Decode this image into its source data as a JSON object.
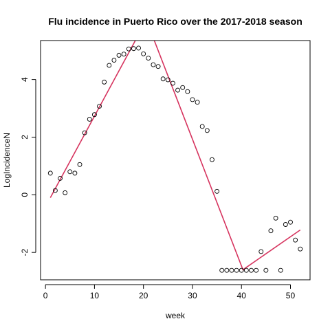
{
  "chart_data": {
    "type": "scatter",
    "title": "Flu incidence in Puerto Rico over the 2017-2018 season",
    "xlabel": "week",
    "ylabel": "LogIncidenceN",
    "xlim": [
      -1,
      54
    ],
    "ylim": [
      -2.95,
      5.35
    ],
    "x_ticks": [
      0,
      10,
      20,
      30,
      40,
      50
    ],
    "y_ticks": [
      -2,
      0,
      2,
      4
    ],
    "grid": false,
    "legend": "none",
    "point_color": "#000000",
    "line_color": "#d6335e",
    "series": [
      {
        "type": "scatter",
        "x": [
          1,
          2,
          3,
          4,
          5,
          6,
          7,
          8,
          9,
          10,
          11,
          12,
          13,
          14,
          15,
          16,
          17,
          18,
          19,
          20,
          21,
          22,
          23,
          24,
          25,
          26,
          27,
          28,
          29,
          30,
          31,
          32,
          33,
          34,
          35,
          36,
          37,
          38,
          39,
          40,
          41,
          42,
          43,
          44,
          45,
          46,
          47,
          48,
          49,
          50,
          51,
          52
        ],
        "y": [
          0.75,
          0.15,
          0.57,
          0.07,
          0.8,
          0.75,
          1.05,
          2.15,
          2.62,
          2.78,
          3.07,
          3.91,
          4.49,
          4.67,
          4.84,
          4.88,
          5.06,
          5.07,
          5.09,
          4.89,
          4.74,
          4.51,
          4.45,
          4.02,
          3.99,
          3.87,
          3.63,
          3.72,
          3.58,
          3.3,
          3.21,
          2.37,
          2.23,
          1.22,
          0.12,
          -2.62,
          -2.62,
          -2.62,
          -2.62,
          -2.62,
          -2.62,
          -2.62,
          -2.62,
          -1.97,
          -2.62,
          -1.25,
          -0.81,
          -2.62,
          -1.03,
          -0.95,
          -1.57,
          -1.88
        ]
      },
      {
        "type": "line",
        "x": [
          1,
          18.5,
          22.1,
          40.3,
          52
        ],
        "y": [
          -0.1,
          5.4,
          5.4,
          -2.6,
          -1.22
        ]
      }
    ]
  }
}
